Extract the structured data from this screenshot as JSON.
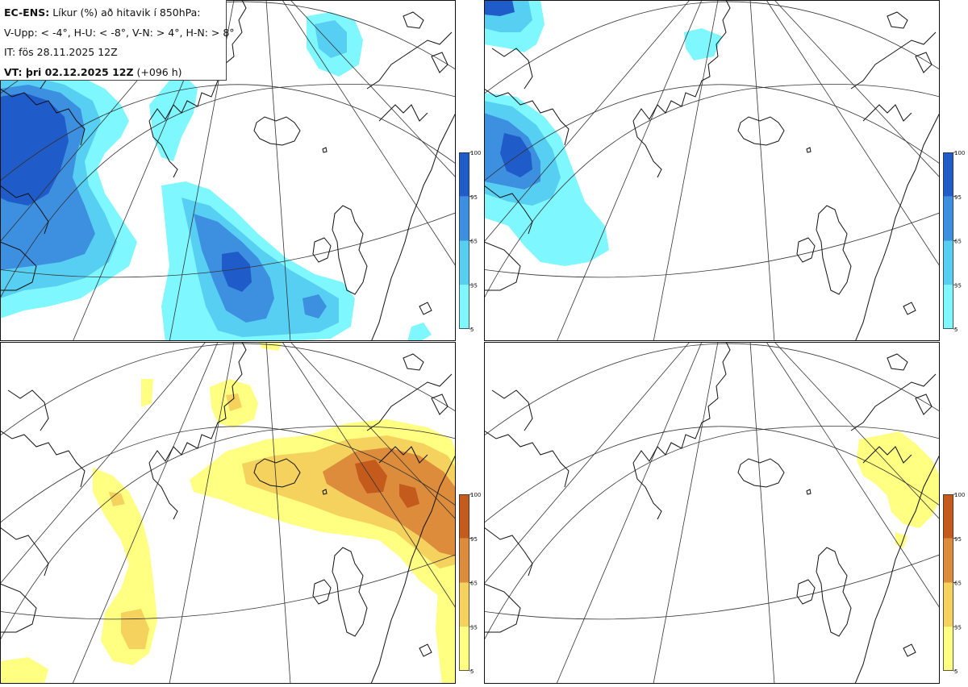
{
  "header": {
    "model": "EC-ENS:",
    "title": "Líkur (%) að hitavik í 850hPa:",
    "legend_line": "V-Upp: < -4°, H-U: < -8°, V-N: > 4°, H-N: > 8°",
    "issue_time": "IT: fös 28.11.2025 12Z",
    "valid_label": "VT:",
    "valid_time": "þri 02.12.2025 12Z",
    "lead": "(+096 h)"
  },
  "colorbars": {
    "ticks": [
      "100",
      "95",
      "65",
      "35",
      "5"
    ],
    "cold_colors": [
      "#7ff7ff",
      "#57cff2",
      "#3d8fe0",
      "#1f5cc9"
    ],
    "warm_colors": [
      "#ffff82",
      "#f5d25e",
      "#dc8c3a",
      "#c45a1c"
    ]
  },
  "panels": [
    {
      "id": "upper-left",
      "name": "cold-below-minus-4"
    },
    {
      "id": "upper-right",
      "name": "cold-below-minus-8"
    },
    {
      "id": "lower-left",
      "name": "warm-above-4"
    },
    {
      "id": "lower-right",
      "name": "warm-above-8"
    }
  ]
}
